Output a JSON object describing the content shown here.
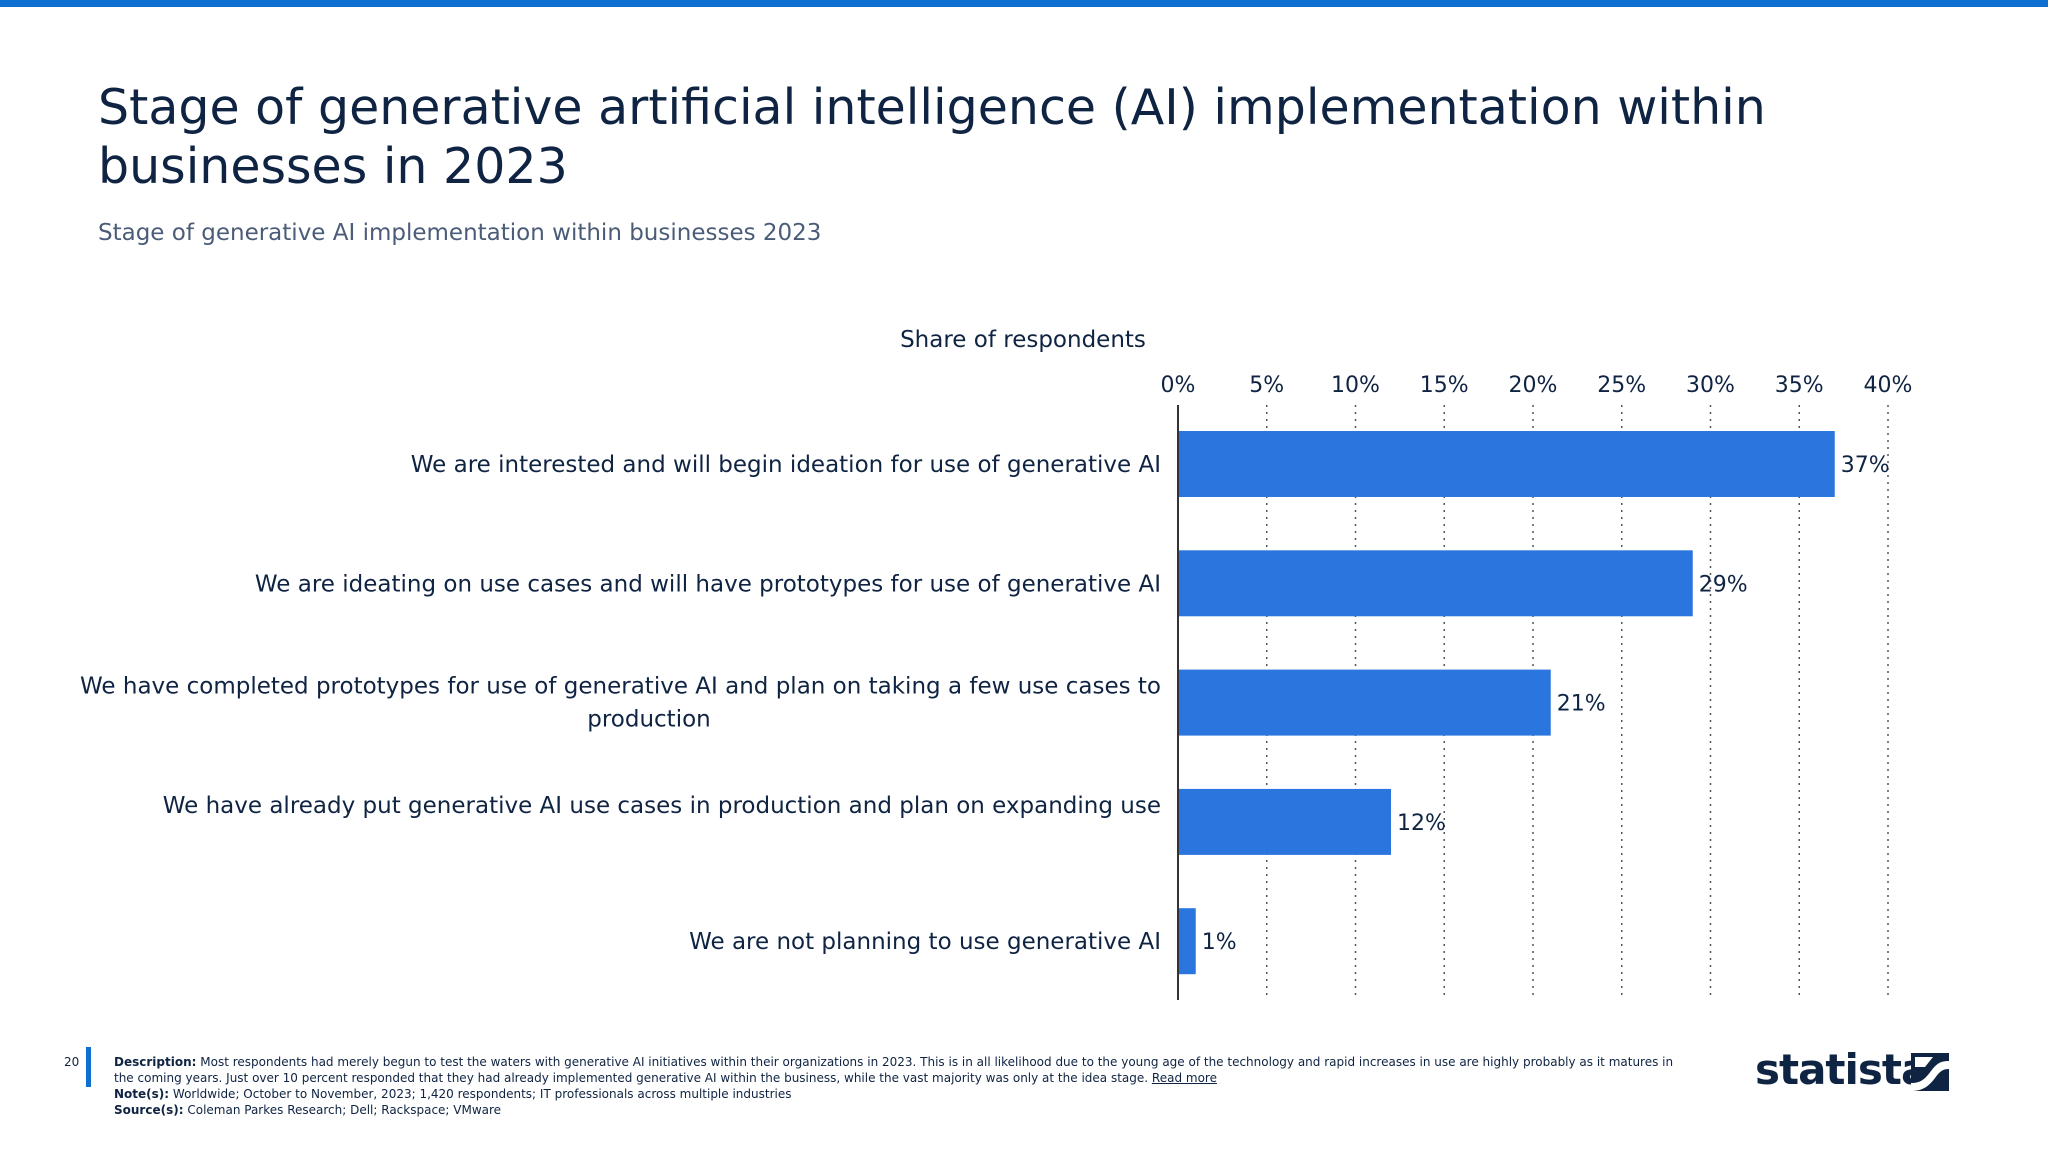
{
  "header": {
    "title": "Stage of generative artificial intelligence (AI) implementation within businesses in 2023",
    "subtitle": "Stage of generative AI implementation within businesses 2023"
  },
  "chart_data": {
    "type": "bar",
    "orientation": "horizontal",
    "xlabel": "Share of respondents",
    "xlim": [
      0,
      40
    ],
    "x_ticks": [
      0,
      5,
      10,
      15,
      20,
      25,
      30,
      35,
      40
    ],
    "x_tick_labels": [
      "0%",
      "5%",
      "10%",
      "15%",
      "20%",
      "25%",
      "30%",
      "35%",
      "40%"
    ],
    "grid": "vertical dotted",
    "categories": [
      "We are interested and will begin ideation for use of generative AI",
      "We are ideating on use cases and will have prototypes for use of generative AI",
      "We have completed prototypes for use of generative AI and plan on taking a few use cases to production",
      "We have already put generative AI use cases in production and plan on expanding use",
      "We are not planning to use generative AI"
    ],
    "values": [
      37,
      29,
      21,
      12,
      1
    ],
    "value_labels": [
      "37%",
      "29%",
      "21%",
      "12%",
      "1%"
    ],
    "bar_color": "#2b76de"
  },
  "footer": {
    "page_number": "20",
    "description_label": "Description:",
    "description": "Most respondents had merely begun to test the waters with generative AI initiatives within their organizations in 2023. This is in all likelihood due to the young age of the technology and rapid increases in use are highly probably as it matures in the coming years. Just over 10 percent responded that they had already implemented generative AI within the business, while the vast majority was only at the idea stage.",
    "read_more": "Read more",
    "note_label": "Note(s):",
    "note": "Worldwide; October to November, 2023; 1,420 respondents; IT professionals across multiple industries",
    "source_label": "Source(s):",
    "source": "Coleman Parkes Research; Dell; Rackspace; VMware"
  },
  "brand": {
    "logo_text": "statista",
    "accent_color": "#0d6fd1"
  }
}
